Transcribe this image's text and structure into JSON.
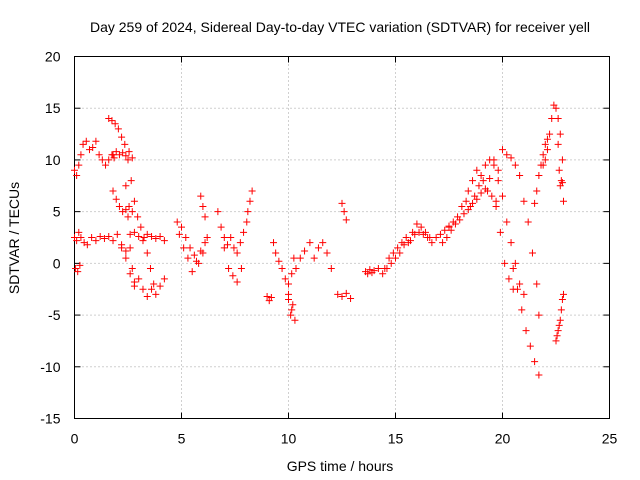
{
  "chart_data": {
    "type": "scatter",
    "title": "Day 259 of 2024, Sidereal Day-to-day VTEC variation (SDTVAR) for receiver yell",
    "xlabel": "GPS time / hours",
    "ylabel": "SDTVAR / TECUs",
    "xlim": [
      0,
      25
    ],
    "ylim": [
      -15,
      20
    ],
    "xticks": [
      "0",
      "5",
      "10",
      "15",
      "20",
      "25"
    ],
    "yticks": [
      "-15",
      "-10",
      "-5",
      "0",
      "5",
      "10",
      "15",
      "20"
    ],
    "grid": true,
    "marker": "+",
    "series": [
      {
        "name": "SDTVAR",
        "color": "#ff0000",
        "tracks": [
          {
            "x": [
              0.0,
              0.1,
              0.2,
              0.3,
              0.4,
              0.55,
              0.7,
              0.85,
              1.0,
              1.15,
              1.3,
              1.45,
              1.6,
              1.75,
              1.85
            ],
            "y": [
              9.0,
              8.5,
              9.5,
              10.5,
              11.5,
              11.8,
              11.0,
              11.2,
              11.8,
              10.5,
              10.0,
              9.5,
              10.0,
              10.5,
              10.2
            ]
          },
          {
            "x": [
              0.0,
              0.1,
              0.2,
              0.3,
              0.45,
              0.6,
              0.8,
              1.0,
              1.2,
              1.4,
              1.6,
              1.8,
              2.0,
              2.2,
              2.4
            ],
            "y": [
              2.5,
              2.2,
              3.0,
              2.5,
              2.0,
              1.8,
              2.5,
              2.2,
              2.6,
              2.4,
              2.6,
              2.2,
              2.8,
              1.8,
              1.2
            ]
          },
          {
            "x": [
              0.05,
              0.15,
              0.25
            ],
            "y": [
              -0.5,
              -0.8,
              -0.2
            ]
          },
          {
            "x": [
              1.6,
              1.75,
              1.9,
              2.05,
              2.2,
              2.35,
              2.5,
              2.65,
              2.8,
              2.95,
              3.1,
              3.25,
              3.4,
              3.55,
              3.7
            ],
            "y": [
              14.0,
              13.8,
              13.5,
              13.0,
              12.2,
              11.5,
              10.0,
              8.0,
              6.0,
              4.5,
              3.5,
              2.5,
              1.0,
              -0.5,
              -2.0
            ]
          },
          {
            "x": [
              1.8,
              1.95,
              2.1,
              2.25,
              2.4,
              2.55,
              2.7
            ],
            "y": [
              10.5,
              10.8,
              10.5,
              10.7,
              10.4,
              10.8,
              10.2
            ]
          },
          {
            "x": [
              1.8,
              1.95,
              2.1,
              2.25,
              2.4,
              2.55,
              2.7
            ],
            "y": [
              7.0,
              6.2,
              5.5,
              5.0,
              5.2,
              5.5,
              5.0
            ]
          },
          {
            "x": [
              2.2,
              2.4,
              2.6,
              2.8,
              3.0,
              3.2,
              3.4,
              3.6,
              3.8,
              4.0,
              4.2
            ],
            "y": [
              1.5,
              0.5,
              -1.0,
              -2.2,
              -1.5,
              -2.5,
              -3.2,
              -2.5,
              -3.0,
              -2.2,
              -1.5
            ]
          },
          {
            "x": [
              2.6,
              2.8,
              3.0,
              3.2,
              3.4,
              3.6,
              3.8,
              4.0,
              4.2
            ],
            "y": [
              2.8,
              3.0,
              2.6,
              2.2,
              2.8,
              2.6,
              2.4,
              2.6,
              2.2
            ]
          },
          {
            "x": [
              2.4,
              2.5,
              2.6,
              2.7,
              2.8
            ],
            "y": [
              7.5,
              4.5,
              1.5,
              -0.5,
              -1.8
            ]
          },
          {
            "x": [
              4.8,
              5.0,
              5.2,
              5.4,
              5.6,
              5.8,
              6.0,
              6.2
            ],
            "y": [
              4.0,
              3.5,
              2.5,
              1.5,
              0.8,
              0.0,
              1.0,
              2.5
            ]
          },
          {
            "x": [
              4.9,
              5.1,
              5.3,
              5.5,
              5.7,
              5.9,
              6.1
            ],
            "y": [
              2.8,
              1.5,
              0.5,
              -0.8,
              0.2,
              1.2,
              2.0
            ]
          },
          {
            "x": [
              5.9,
              6.0,
              6.1
            ],
            "y": [
              6.5,
              5.5,
              4.5
            ]
          },
          {
            "x": [
              6.7,
              6.85,
              7.0,
              7.15,
              7.3,
              7.45,
              7.6,
              7.75,
              7.9,
              8.05
            ],
            "y": [
              5.0,
              3.5,
              2.5,
              1.8,
              2.5,
              1.5,
              1.0,
              2.0,
              3.0,
              4.0
            ]
          },
          {
            "x": [
              7.0,
              7.2,
              7.4,
              7.6,
              7.8
            ],
            "y": [
              1.5,
              -0.5,
              -1.2,
              -1.8,
              -0.5
            ]
          },
          {
            "x": [
              8.1,
              8.2,
              8.3
            ],
            "y": [
              5.0,
              6.0,
              7.0
            ]
          },
          {
            "x": [
              9.0,
              9.1,
              9.2
            ],
            "y": [
              -3.2,
              -3.6,
              -3.3
            ]
          },
          {
            "x": [
              9.3,
              9.4,
              9.55,
              9.7,
              9.85,
              10.0,
              10.15
            ],
            "y": [
              2.0,
              1.0,
              0.2,
              -0.5,
              -1.5,
              -3.0,
              -4.5
            ]
          },
          {
            "x": [
              10.0,
              10.1,
              10.2,
              10.3
            ],
            "y": [
              -3.5,
              -5.0,
              -4.0,
              -5.5
            ]
          },
          {
            "x": [
              10.0,
              10.15,
              10.25
            ],
            "y": [
              -2.0,
              -1.0,
              0.5
            ]
          },
          {
            "x": [
              10.35,
              10.55,
              10.75,
              11.0
            ],
            "y": [
              -0.5,
              0.5,
              1.2,
              2.0
            ]
          },
          {
            "x": [
              11.2,
              11.4,
              11.6,
              11.8,
              12.0
            ],
            "y": [
              0.5,
              1.5,
              2.0,
              1.0,
              -0.5
            ]
          },
          {
            "x": [
              12.3,
              12.5,
              12.7,
              12.9
            ],
            "y": [
              -3.0,
              -3.2,
              -2.9,
              -3.4
            ]
          },
          {
            "x": [
              12.5,
              12.6,
              12.7
            ],
            "y": [
              5.8,
              5.0,
              4.2
            ]
          },
          {
            "x": [
              13.6,
              13.7,
              13.8,
              13.9,
              14.0,
              14.2
            ],
            "y": [
              -0.8,
              -1.0,
              -0.6,
              -0.9,
              -0.7,
              -0.5
            ]
          },
          {
            "x": [
              14.5,
              14.7,
              14.9,
              15.1,
              15.3,
              15.5,
              15.7,
              15.9,
              16.1,
              16.3,
              16.5,
              16.7,
              16.9,
              17.1,
              17.3,
              17.5
            ],
            "y": [
              -0.5,
              0.5,
              1.0,
              1.5,
              2.0,
              2.5,
              2.2,
              2.8,
              3.0,
              2.8,
              2.5,
              2.0,
              2.5,
              2.8,
              3.2,
              3.6
            ]
          },
          {
            "x": [
              14.4,
              14.6,
              14.8,
              15.0,
              15.2,
              15.4,
              15.6,
              15.8,
              16.0,
              16.2,
              16.4,
              16.6
            ],
            "y": [
              -1.0,
              -0.5,
              0.0,
              0.5,
              1.0,
              1.8,
              2.0,
              3.0,
              3.8,
              3.5,
              3.0,
              2.5
            ]
          },
          {
            "x": [
              17.5,
              17.7,
              17.9,
              18.1,
              18.3,
              18.5,
              18.7,
              18.9,
              19.1,
              19.3,
              19.5,
              19.7
            ],
            "y": [
              3.5,
              4.0,
              4.5,
              5.5,
              6.0,
              5.5,
              6.5,
              7.5,
              8.0,
              7.0,
              6.5,
              5.5
            ]
          },
          {
            "x": [
              17.2,
              17.4,
              17.6,
              17.8,
              18.0,
              18.2,
              18.4,
              18.6,
              18.8,
              19.0,
              19.2,
              19.4
            ],
            "y": [
              2.0,
              2.5,
              3.2,
              3.8,
              4.2,
              4.8,
              5.2,
              5.8,
              6.2,
              6.8,
              7.2,
              8.2
            ]
          },
          {
            "x": [
              18.4,
              18.6,
              18.8,
              19.0,
              19.2,
              19.4,
              19.6,
              19.8
            ],
            "y": [
              7.0,
              8.0,
              9.0,
              8.5,
              9.5,
              10.0,
              9.5,
              9.0
            ]
          },
          {
            "x": [
              19.6,
              19.8,
              20.0,
              20.2,
              20.4,
              20.6,
              20.8,
              21.0
            ],
            "y": [
              10.0,
              8.0,
              6.5,
              4.0,
              2.0,
              0.0,
              -2.0,
              -3.0
            ]
          },
          {
            "x": [
              19.7,
              19.9,
              20.1,
              20.3,
              20.5
            ],
            "y": [
              6.0,
              3.0,
              0.0,
              -1.5,
              -2.5
            ]
          },
          {
            "x": [
              20.0,
              20.2,
              20.4,
              20.6,
              20.8,
              21.0,
              21.2,
              21.4,
              21.6,
              21.7
            ],
            "y": [
              11.0,
              10.5,
              10.2,
              9.5,
              8.5,
              6.0,
              4.0,
              1.0,
              -2.0,
              -5.0
            ]
          },
          {
            "x": [
              20.5,
              20.7,
              20.9,
              21.1,
              21.3,
              21.5,
              21.7
            ],
            "y": [
              -0.5,
              -2.5,
              -4.5,
              -6.5,
              -8.0,
              -9.5,
              -10.8
            ]
          },
          {
            "x": [
              21.5,
              21.6,
              21.7,
              21.8,
              21.9,
              22.0,
              22.1
            ],
            "y": [
              5.8,
              7.0,
              8.5,
              9.5,
              10.5,
              11.5,
              12.0
            ]
          },
          {
            "x": [
              21.9,
              22.0,
              22.1,
              22.2,
              22.3,
              22.4,
              22.5,
              22.6,
              22.7,
              22.8
            ],
            "y": [
              9.5,
              10.0,
              11.0,
              12.5,
              14.0,
              15.3,
              15.0,
              14.0,
              12.5,
              10.0
            ]
          },
          {
            "x": [
              22.6,
              22.65,
              22.7,
              22.75,
              22.8,
              22.85
            ],
            "y": [
              11.5,
              9.0,
              7.5,
              8.0,
              7.8,
              6.0
            ]
          },
          {
            "x": [
              22.5,
              22.55,
              22.6,
              22.65,
              22.7,
              22.75,
              22.8,
              22.85
            ],
            "y": [
              -7.5,
              -7.0,
              -6.5,
              -6.0,
              -5.5,
              -4.5,
              -3.5,
              -3.0
            ]
          }
        ]
      }
    ]
  }
}
